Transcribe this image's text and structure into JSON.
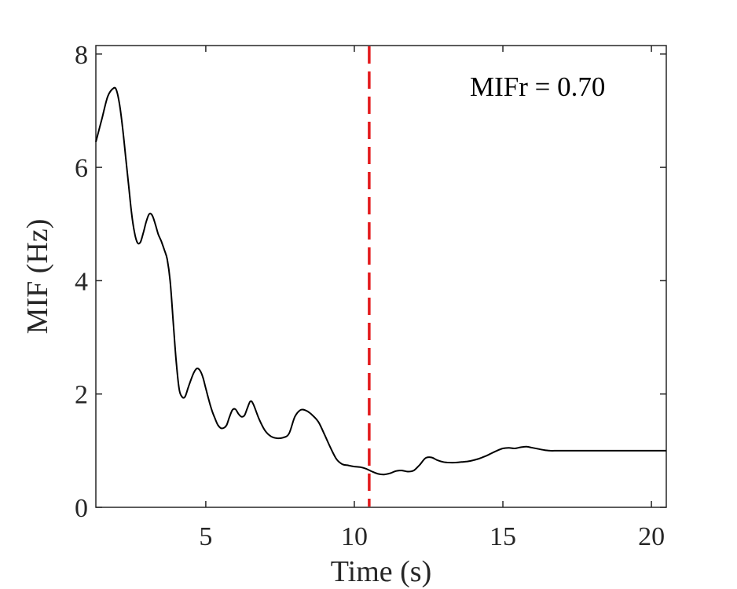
{
  "chart_data": {
    "type": "line",
    "title": "",
    "xlabel": "Time (s)",
    "ylabel": "MIF (Hz)",
    "xlim": [
      1.3,
      20.5
    ],
    "ylim": [
      0,
      8.15
    ],
    "xticks": [
      5,
      10,
      15,
      20
    ],
    "xtick_labels": [
      "5",
      "10",
      "15",
      "20"
    ],
    "yticks": [
      0,
      2,
      4,
      6,
      8
    ],
    "ytick_labels": [
      "0",
      "2",
      "4",
      "6",
      "8"
    ],
    "grid": false,
    "annotation": "MIFr = 0.70",
    "vertical_line": {
      "x": 10.5,
      "color": "#e31a1c",
      "style": "dashed"
    },
    "series": [
      {
        "color": "#000000",
        "x": [
          1.3,
          1.5,
          1.7,
          1.9,
          2.0,
          2.1,
          2.2,
          2.3,
          2.4,
          2.5,
          2.6,
          2.7,
          2.8,
          2.9,
          3.0,
          3.1,
          3.2,
          3.3,
          3.4,
          3.5,
          3.6,
          3.7,
          3.8,
          3.9,
          4.0,
          4.1,
          4.2,
          4.3,
          4.4,
          4.5,
          4.6,
          4.7,
          4.8,
          4.9,
          5.0,
          5.1,
          5.2,
          5.3,
          5.4,
          5.5,
          5.6,
          5.7,
          5.8,
          5.9,
          6.0,
          6.1,
          6.2,
          6.3,
          6.4,
          6.5,
          6.6,
          6.8,
          7.0,
          7.2,
          7.4,
          7.6,
          7.8,
          8.0,
          8.2,
          8.4,
          8.6,
          8.8,
          9.0,
          9.2,
          9.4,
          9.6,
          9.8,
          10.0,
          10.2,
          10.4,
          10.6,
          10.8,
          11.0,
          11.2,
          11.4,
          11.6,
          11.8,
          12.0,
          12.2,
          12.4,
          12.6,
          12.8,
          13.0,
          13.2,
          13.4,
          13.6,
          13.8,
          14.0,
          14.2,
          14.4,
          14.6,
          14.8,
          15.0,
          15.2,
          15.4,
          15.6,
          15.8,
          16.0,
          16.2,
          16.4,
          16.6,
          16.8,
          17.0,
          17.2,
          17.4,
          17.6,
          17.8,
          18.0,
          18.2,
          18.4,
          18.6,
          18.8,
          19.0,
          19.2,
          19.4,
          19.6,
          19.8,
          20.0,
          20.2,
          20.5
        ],
        "values": [
          6.45,
          6.85,
          7.25,
          7.4,
          7.35,
          7.1,
          6.7,
          6.2,
          5.7,
          5.2,
          4.85,
          4.67,
          4.68,
          4.85,
          5.05,
          5.18,
          5.15,
          5.0,
          4.82,
          4.7,
          4.55,
          4.38,
          4.0,
          3.3,
          2.6,
          2.1,
          1.95,
          1.95,
          2.1,
          2.25,
          2.38,
          2.45,
          2.42,
          2.3,
          2.1,
          1.9,
          1.72,
          1.58,
          1.46,
          1.4,
          1.4,
          1.45,
          1.6,
          1.72,
          1.73,
          1.65,
          1.6,
          1.62,
          1.75,
          1.87,
          1.82,
          1.55,
          1.35,
          1.25,
          1.22,
          1.23,
          1.3,
          1.6,
          1.72,
          1.7,
          1.62,
          1.5,
          1.28,
          1.05,
          0.85,
          0.76,
          0.74,
          0.72,
          0.71,
          0.68,
          0.63,
          0.59,
          0.58,
          0.6,
          0.64,
          0.65,
          0.63,
          0.65,
          0.75,
          0.87,
          0.88,
          0.83,
          0.8,
          0.79,
          0.79,
          0.8,
          0.81,
          0.83,
          0.86,
          0.9,
          0.95,
          1.0,
          1.04,
          1.05,
          1.04,
          1.06,
          1.07,
          1.05,
          1.03,
          1.01,
          1.0,
          1.0,
          1.0,
          1.0,
          1.0,
          1.0,
          1.0,
          1.0,
          1.0,
          1.0,
          1.0,
          1.0,
          1.0,
          1.0,
          1.0,
          1.0,
          1.0,
          1.0,
          1.0,
          1.0
        ]
      }
    ]
  }
}
